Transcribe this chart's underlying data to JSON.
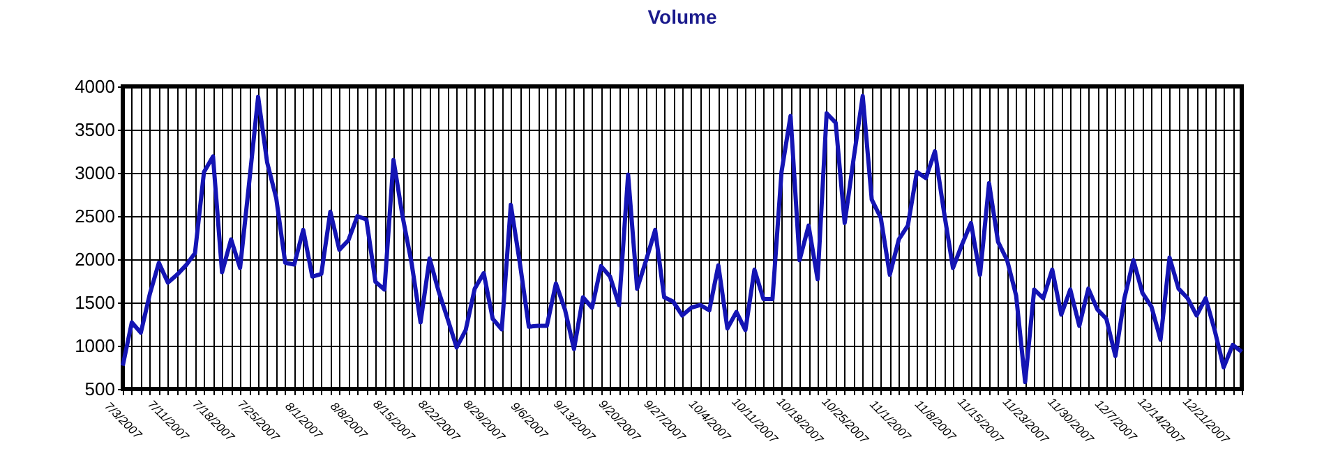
{
  "chart_data": {
    "type": "line",
    "title": "Volume",
    "categories": [
      "7/3/2007",
      null,
      null,
      null,
      null,
      "7/11/2007",
      null,
      null,
      null,
      null,
      "7/18/2007",
      null,
      null,
      null,
      null,
      "7/25/2007",
      null,
      null,
      null,
      null,
      "8/1/2007",
      null,
      null,
      null,
      null,
      "8/8/2007",
      null,
      null,
      null,
      null,
      "8/15/2007",
      null,
      null,
      null,
      null,
      "8/22/2007",
      null,
      null,
      null,
      null,
      "8/29/2007",
      null,
      null,
      null,
      null,
      "9/6/2007",
      null,
      null,
      null,
      null,
      "9/13/2007",
      null,
      null,
      null,
      null,
      "9/20/2007",
      null,
      null,
      null,
      null,
      "9/27/2007",
      null,
      null,
      null,
      null,
      "10/4/2007",
      null,
      null,
      null,
      null,
      "10/11/2007",
      null,
      null,
      null,
      null,
      "10/18/2007",
      null,
      null,
      null,
      null,
      "10/25/2007",
      null,
      null,
      null,
      null,
      "11/1/2007",
      null,
      null,
      null,
      null,
      "11/8/2007",
      null,
      null,
      null,
      null,
      "11/15/2007",
      null,
      null,
      null,
      null,
      "11/23/2007",
      null,
      null,
      null,
      null,
      "11/30/2007",
      null,
      null,
      null,
      null,
      "12/7/2007",
      null,
      null,
      null,
      null,
      "12/14/2007",
      null,
      null,
      null,
      null,
      "12/21/2007",
      null,
      null,
      null,
      null
    ],
    "series": [
      {
        "color": "#1414b4",
        "values": [
          770,
          1270,
          1150,
          1600,
          1960,
          1730,
          1820,
          1930,
          2070,
          3010,
          3190,
          1850,
          2230,
          1900,
          2880,
          3880,
          3120,
          2710,
          1960,
          1940,
          2340,
          1800,
          1830,
          2550,
          2110,
          2220,
          2500,
          2460,
          1740,
          1650,
          3150,
          2500,
          1960,
          1270,
          2010,
          1630,
          1310,
          980,
          1180,
          1660,
          1840,
          1310,
          1190,
          2630,
          1960,
          1220,
          1230,
          1230,
          1720,
          1420,
          960,
          1560,
          1440,
          1920,
          1800,
          1470,
          2980,
          1660,
          1990,
          2340,
          1560,
          1510,
          1350,
          1440,
          1470,
          1410,
          1930,
          1200,
          1390,
          1180,
          1880,
          1540,
          1540,
          3010,
          3660,
          1990,
          2390,
          1770,
          3690,
          3580,
          2420,
          3170,
          3890,
          2690,
          2480,
          1820,
          2230,
          2390,
          3010,
          2940,
          3250,
          2550,
          1900,
          2170,
          2420,
          1820,
          2880,
          2200,
          1990,
          1580,
          580,
          1650,
          1550,
          1880,
          1360,
          1650,
          1230,
          1660,
          1420,
          1310,
          880,
          1550,
          1990,
          1610,
          1450,
          1070,
          2020,
          1660,
          1550,
          1350,
          1550,
          1180,
          750,
          1010,
          930
        ]
      }
    ],
    "ylim": [
      500,
      4000
    ],
    "yticks": [
      500,
      1000,
      1500,
      2000,
      2500,
      3000,
      3500,
      4000
    ],
    "grid": true,
    "marker": "none",
    "line_style": "solid"
  }
}
